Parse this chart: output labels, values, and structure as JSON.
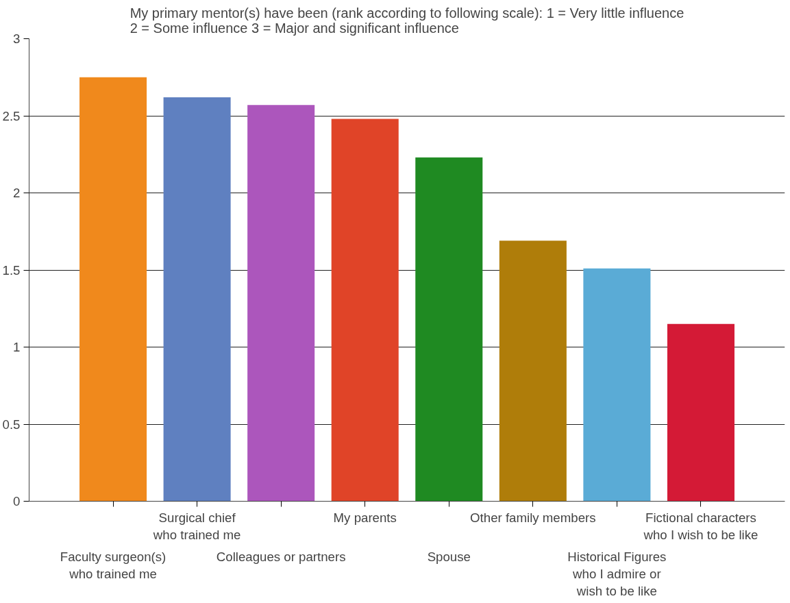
{
  "chart_data": {
    "type": "bar",
    "title": "My primary mentor(s) have been (rank according to following scale): 1 = Very little influence\n2 = Some influence 3 = Major and significant influence",
    "categories": [
      "Faculty surgeon(s)\nwho trained me",
      "Surgical chief\nwho trained me",
      "Colleagues or partners",
      "My parents",
      "Spouse",
      "Other family members",
      "Historical Figures\nwho I admire or\nwish to be like",
      "Fictional characters\nwho I wish to be like"
    ],
    "values": [
      2.75,
      2.62,
      2.57,
      2.48,
      2.23,
      1.69,
      1.51,
      1.15
    ],
    "colors": [
      "#f0891c",
      "#5f80c0",
      "#ac56bc",
      "#e04428",
      "#1f8a22",
      "#af7d0a",
      "#5aabd6",
      "#d41a36"
    ],
    "ylim": [
      0,
      3
    ],
    "yticks": [
      0,
      0.5,
      1,
      1.5,
      2,
      2.5,
      3
    ],
    "grid": "y"
  }
}
